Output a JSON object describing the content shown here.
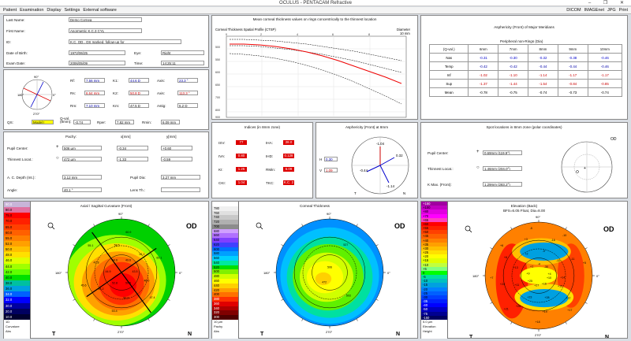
{
  "window": {
    "title": "OCULUS - PENTACAM Refractive",
    "controls": "– ❐ ✕"
  },
  "menu": {
    "items": [
      "Patient",
      "Examination",
      "Display",
      "Settings",
      "External software"
    ],
    "right": [
      "DICOM",
      "IMAGEnet",
      "JPG",
      "Print"
    ]
  },
  "patient": {
    "last_name_label": "Last Name:",
    "last_name": "Demo Cornea",
    "first_name_label": "First Name:",
    "first_name": "Anormetric K.C.3 CYL",
    "id_label": "ID:",
    "id": "K.C. OD., OS marked, follow-up for",
    "dob_label": "Date of Birth:",
    "dob": "1972/06/25",
    "eye_label": "Eye:",
    "eye": "Right",
    "exam_label": "Exam Date:",
    "exam_date": "2006/05/09",
    "time_label": "Time:",
    "time": "14:25:11"
  },
  "kvalues": {
    "rows": [
      {
        "l1": "Rf:",
        "v1": "7.56 mm",
        "l2": "K1:",
        "v2": "44.6 D",
        "l3": "Axis:",
        "v3": "23.3 °"
      },
      {
        "l1": "Rs:",
        "v1": "6.64 mm",
        "l2": "K2:",
        "v2": "50.8 D",
        "l3": "Axis:",
        "v3": "113.3 °"
      },
      {
        "l1": "Rm:",
        "v1": "7.10 mm",
        "l2": "Km:",
        "v2": "47.5 D",
        "l3": "Astig:",
        "v3": "6.2 D"
      }
    ],
    "qs_label": "QS:",
    "qs": "Model !",
    "qval_label": "Q-val. (8mm):",
    "qval": "-0.74",
    "rper_label": "Rper:",
    "rper": "7.82 mm",
    "rmin_label": "Rmin:",
    "rmin": "6.09 mm",
    "compass": {
      "n90": "90°",
      "n0": "0°",
      "n180": "180°",
      "n270": "270°"
    }
  },
  "pupil": {
    "pachy_label": "Pachy:",
    "x_label": "x[mm]",
    "y_label": "y[mm]",
    "center_label": "Pupil Center:",
    "center_pachy": "506 µm",
    "center_x": "-0.34",
    "center_y": "+0.60",
    "thin_label": "Thinnest Locat.:",
    "thin_pachy": "472 µm",
    "thin_x": "-1.33",
    "thin_y": "-0.59",
    "acd_label": "A. C. Depth (Int.):",
    "acd": "3.12 mm",
    "pdia_label": "Pupil Dia:",
    "pdia": "3.27 mm",
    "angle_label": "Angle:",
    "angle": "40.1 °",
    "lens_label": "Lens Th.:",
    "lens": ""
  },
  "thickness_chart": {
    "title": "Mean corneal thickness values on rings concentrically to the thinnest location",
    "subtitle": "Corneal Thickness Spatial Profile (CTSP)",
    "xlabel": "Diameter",
    "xunit": "10 mm"
  },
  "asph_meridians": {
    "title": "Asphericity (Front) of Major Meridians",
    "table_title": "Peripheral non-Rings (Dia)",
    "cols": [
      "(Q-val.)",
      "6mm",
      "7mm",
      "8mm",
      "9mm",
      "10mm"
    ],
    "rows": [
      [
        "Nas",
        "-0.31",
        "-0.30",
        "-0.32",
        "-0.38",
        "-0.46"
      ],
      [
        "Temp",
        "-0.42",
        "-0.42",
        "-0.44",
        "-0.44",
        "-0.46"
      ],
      [
        "Inf",
        "-1.02",
        "-1.10",
        "-1.14",
        "-1.17",
        "-1.17"
      ],
      [
        "Sup",
        "-1.37",
        "-1.44",
        "-1.54",
        "-0.84",
        "-0.85"
      ],
      [
        "Mean",
        "-0.78",
        "-0.75",
        "-0.74",
        "-0.73",
        "-0.74"
      ]
    ]
  },
  "indices": {
    "title": "Indices (in 8mm zone)",
    "items": [
      {
        "l": "ISV:",
        "v": "77"
      },
      {
        "l": "IHA:",
        "v": "28.0"
      },
      {
        "l": "IVA:",
        "v": "0.80"
      },
      {
        "l": "IHD:",
        "v": "0.128"
      },
      {
        "l": "KI:",
        "v": "1.25"
      },
      {
        "l": "RMin:",
        "v": "6.09"
      },
      {
        "l": "CKI:",
        "v": "1.04"
      },
      {
        "l": "TKC:",
        "v": "K.C. 2"
      }
    ]
  },
  "asph8": {
    "title": "Asphericity (Front) at 8mm",
    "h_label": "H",
    "h": "0.30",
    "v_label": "V",
    "v": "1.09",
    "t": "T",
    "n": "N",
    "top": "-1.04",
    "right": "0.32",
    "left": "-0.44",
    "bottom": "-1.14"
  },
  "spot": {
    "title": "Spot locations in 8mm zone (polar coordinates)",
    "pupil_label": "Pupil Center:",
    "pupil": "0.69mm (119.9°)",
    "thin_label": "Thinnest Locat.:",
    "thin": "1.46mm (204.0°)",
    "kmax_label": "K Max. (Front):",
    "kmax": "1.29mm (283.2°)",
    "od": "OD"
  },
  "map1": {
    "title": "Axial / Sagittal Curvature (Front)",
    "od": "OD",
    "t": "T",
    "n": "N",
    "top": "90°",
    "bottom": "270°",
    "left": "180°",
    "right": "0°",
    "unit1": "1D",
    "unit2": "Curvature",
    "unit3": "Abs",
    "scale": [
      "90.0",
      "80.0",
      "75.0",
      "70.0",
      "65.0",
      "60.0",
      "55.0",
      "52.0",
      "50.0",
      "48.0",
      "46.0",
      "44.0",
      "42.0",
      "40.0",
      "38.0",
      "36.0",
      "34.0",
      "32.0",
      "30.0",
      "20.0",
      "10.0"
    ],
    "colors": [
      "#c8b4d8",
      "#e070a0",
      "#ff0000",
      "#ff2000",
      "#ff4000",
      "#ff6000",
      "#ff7f00",
      "#ffa000",
      "#ffc000",
      "#ffe000",
      "#e0ff00",
      "#a0ff00",
      "#60ff00",
      "#00e000",
      "#00c0a0",
      "#00a0e0",
      "#0060ff",
      "#0000ff",
      "#0000a0",
      "#000060",
      "#000030"
    ],
    "labels": [
      "43.5",
      "46.0",
      "47.4",
      "50.5",
      "50.9",
      "53.4",
      "52.8",
      "44.2",
      "45.6",
      "44.9",
      "47.8",
      "55.1",
      "54.6",
      "58.5",
      "60.9",
      "49.6",
      "51.2",
      "60.1"
    ]
  },
  "map2": {
    "title": "Corneal Thickness",
    "od": "OD",
    "t": "T",
    "n": "N",
    "top": "90°",
    "bottom": "270°",
    "left": "180°",
    "right": "0°",
    "unit1": "10 µm",
    "unit2": "Pachy",
    "unit3": "Abs",
    "scale": [
      "800",
      "780",
      "760",
      "740",
      "720",
      "700",
      "680",
      "660",
      "640",
      "620",
      "600",
      "580",
      "560",
      "540",
      "520",
      "500",
      "480",
      "460",
      "440",
      "420",
      "400",
      "380",
      "360",
      "340",
      "320",
      "300"
    ],
    "colors": [
      "#ffffff",
      "#f0f0f0",
      "#e0e0e0",
      "#c8c8c8",
      "#b0b0b0",
      "#8c8c8c",
      "#d0a0ff",
      "#b070ff",
      "#8040ff",
      "#4040ff",
      "#0070ff",
      "#00a0ff",
      "#00d0ff",
      "#00e8a0",
      "#00e000",
      "#80f000",
      "#d0ff00",
      "#ffff00",
      "#ffd000",
      "#ffa000",
      "#ff7000",
      "#ff3000",
      "#e00000",
      "#b00000",
      "#800000",
      "#500000"
    ],
    "labels": [
      "506",
      "472",
      "527",
      "503"
    ]
  },
  "map3": {
    "title": "Elevation (Back)",
    "subtitle": "BFS=6.05 Float, Dia=8.00",
    "od": "OD",
    "t": "T",
    "n": "N",
    "top": "90°",
    "bottom": "270°",
    "left": "180°",
    "right": "0°",
    "unit1": "5.0 µm",
    "unit2": "Elevation",
    "unit3": "Height",
    "scale": [
      "+150",
      "+100",
      "+80",
      "+70",
      "+65",
      "+60",
      "+55",
      "+50",
      "+45",
      "+40",
      "+35",
      "+30",
      "+25",
      "+20",
      "+15",
      "+10",
      "+5",
      "0",
      "-5",
      "-10",
      "-15",
      "-20",
      "-25",
      "-30",
      "-35",
      "-40",
      "-50",
      "-75",
      "-150"
    ],
    "colors": [
      "#a000a0",
      "#c000c0",
      "#e000e0",
      "#ff00ff",
      "#ff40c0",
      "#ff0000",
      "#ff2000",
      "#ff4000",
      "#ff6000",
      "#ff8000",
      "#ffa000",
      "#ffc000",
      "#ffe000",
      "#ffff00",
      "#e0ff00",
      "#c0ff40",
      "#80ff80",
      "#00ff00",
      "#00e0a0",
      "#00c0c0",
      "#00a0e0",
      "#0080ff",
      "#0060ff",
      "#0040ff",
      "#0020ff",
      "#0000ff",
      "#0000c0",
      "#000090",
      "#000060"
    ],
    "labels": [
      "+10",
      "+15",
      "+12",
      "+17",
      "+16",
      "+28",
      "+19",
      "+18",
      "+27",
      "+23",
      "+26",
      "+21",
      "+25",
      "+11",
      "+20",
      "+7",
      "+9",
      "+13",
      "+8",
      "+6",
      "+1",
      "+2",
      "+3",
      "-5",
      "-4",
      "-9",
      "-16",
      "-10",
      "-30",
      "-12",
      "-11",
      "+5",
      "+4",
      "+14"
    ]
  }
}
